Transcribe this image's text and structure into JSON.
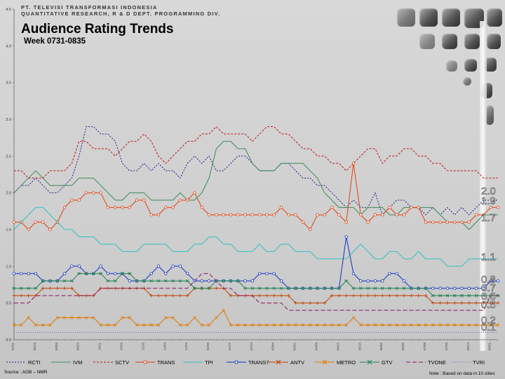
{
  "header": {
    "company_line1": "PT. TELEVISI TRANSFORMASI INDONESIA",
    "company_line2": "QUANTITATIVE RESEARCH, R & D DEPT. PROGRAMMING DIV.",
    "title": "Audience Rating Trends",
    "subtitle": "Week 0731-0835"
  },
  "footer": {
    "source": "Source : AGB – NMR",
    "note": "Note : Based on data in 10 cities"
  },
  "right_labels": [
    "2.0",
    "1.9",
    "1.7",
    "1.1",
    "0.8",
    "0.7",
    "0.6",
    "0.5",
    "0.2",
    "0.1"
  ],
  "chart_data": {
    "type": "line",
    "title": "Audience Rating Trends",
    "subtitle": "Week 0731-0835",
    "ylim": [
      0,
      4.5
    ],
    "yticks": [
      "0.0",
      "0.5",
      "1.0",
      "1.5",
      "2.0",
      "2.5",
      "3.0",
      "3.5",
      "4.0",
      "4.5"
    ],
    "x": [
      "07/31",
      "08/06",
      "08/12",
      "08/18",
      "08/24",
      "08/30",
      "09/05",
      "09/11",
      "09/17",
      "09/23",
      "09/29",
      "10/05",
      "10/11",
      "10/17",
      "10/23",
      "10/29",
      "11/04",
      "11/10",
      "11/16",
      "11/22",
      "11/28",
      "12/04",
      "12/10",
      "12/16",
      "12/22",
      "12/28",
      "01/03",
      "01/09",
      "01/15",
      "01/21",
      "01/27",
      "02/02",
      "02/08",
      "02/14",
      "02/20",
      "02/26",
      "03/04",
      "03/10",
      "03/16",
      "03/22",
      "03/28",
      "04/03",
      "04/09",
      "04/15",
      "04/21",
      "04/27",
      "05/03",
      "05/09",
      "05/15",
      "05/21",
      "05/27",
      "06/02",
      "06/08",
      "06/14",
      "06/20",
      "06/26",
      "07/02",
      "07/08",
      "07/14",
      "07/20",
      "07/26",
      "08/01",
      "08/07",
      "08/13",
      "08/19",
      "08/25",
      "08/31",
      "09/06"
    ],
    "grid": false,
    "legend_position": "bottom",
    "series": [
      {
        "name": "RCTI",
        "color": "#1a1a8c",
        "dash": "2,2",
        "marker": "none",
        "values": [
          2.0,
          2.1,
          2.1,
          2.2,
          2.1,
          2.0,
          2.0,
          2.1,
          2.2,
          2.5,
          2.9,
          2.9,
          2.8,
          2.8,
          2.7,
          2.4,
          2.3,
          2.3,
          2.4,
          2.3,
          2.4,
          2.3,
          2.3,
          2.2,
          2.4,
          2.5,
          2.4,
          2.5,
          2.3,
          2.3,
          2.4,
          2.5,
          2.5,
          2.4,
          2.3,
          2.3,
          2.3,
          2.4,
          2.4,
          2.3,
          2.2,
          2.2,
          2.1,
          2.1,
          2.0,
          1.9,
          1.8,
          1.9,
          1.8,
          1.8,
          2.0,
          1.7,
          1.8,
          1.9,
          1.9,
          1.8,
          1.8,
          1.7,
          1.8,
          1.7,
          1.8,
          1.7,
          1.8,
          1.7,
          1.8,
          1.9,
          1.9,
          1.9
        ]
      },
      {
        "name": "IVM",
        "color": "#3a8a5a",
        "dash": "",
        "marker": "none",
        "values": [
          2.0,
          2.1,
          2.2,
          2.3,
          2.2,
          2.1,
          2.1,
          2.1,
          2.1,
          2.2,
          2.2,
          2.2,
          2.1,
          2.0,
          1.9,
          1.9,
          2.0,
          2.0,
          2.0,
          1.9,
          1.9,
          1.9,
          1.9,
          2.0,
          1.9,
          1.9,
          2.0,
          2.2,
          2.6,
          2.7,
          2.7,
          2.6,
          2.6,
          2.4,
          2.3,
          2.3,
          2.3,
          2.4,
          2.4,
          2.4,
          2.4,
          2.3,
          2.2,
          2.0,
          1.9,
          1.8,
          1.8,
          1.8,
          1.7,
          1.8,
          1.8,
          1.8,
          1.7,
          1.7,
          1.8,
          1.8,
          1.8,
          1.8,
          1.8,
          1.7,
          1.6,
          1.6,
          1.6,
          1.5,
          1.6,
          1.7,
          1.7,
          1.7
        ]
      },
      {
        "name": "SCTV",
        "color": "#c01818",
        "dash": "3,2",
        "marker": "none",
        "values": [
          2.3,
          2.3,
          2.2,
          2.2,
          2.2,
          2.3,
          2.3,
          2.3,
          2.4,
          2.7,
          2.7,
          2.6,
          2.6,
          2.6,
          2.5,
          2.6,
          2.7,
          2.7,
          2.8,
          2.7,
          2.5,
          2.4,
          2.5,
          2.6,
          2.7,
          2.7,
          2.8,
          2.8,
          2.9,
          2.8,
          2.8,
          2.8,
          2.8,
          2.7,
          2.8,
          2.9,
          2.9,
          2.8,
          2.8,
          2.7,
          2.6,
          2.6,
          2.5,
          2.5,
          2.4,
          2.4,
          2.3,
          2.4,
          2.5,
          2.6,
          2.6,
          2.4,
          2.5,
          2.5,
          2.6,
          2.6,
          2.5,
          2.5,
          2.4,
          2.4,
          2.3,
          2.3,
          2.3,
          2.3,
          2.3,
          2.2,
          2.2,
          2.2
        ]
      },
      {
        "name": "TRANS",
        "color": "#e04010",
        "dash": "",
        "marker": "circle",
        "values": [
          1.6,
          1.6,
          1.5,
          1.6,
          1.6,
          1.5,
          1.6,
          1.8,
          1.9,
          1.9,
          2.0,
          2.0,
          2.0,
          1.8,
          1.8,
          1.8,
          1.8,
          1.9,
          1.9,
          1.7,
          1.7,
          1.8,
          1.8,
          1.9,
          1.9,
          2.0,
          1.8,
          1.7,
          1.7,
          1.7,
          1.7,
          1.7,
          1.7,
          1.7,
          1.7,
          1.7,
          1.7,
          1.8,
          1.7,
          1.7,
          1.6,
          1.5,
          1.7,
          1.7,
          1.8,
          1.7,
          1.6,
          2.4,
          1.7,
          1.6,
          1.7,
          1.7,
          1.8,
          1.7,
          1.7,
          1.8,
          1.8,
          1.6,
          1.6,
          1.6,
          1.6,
          1.6,
          1.6,
          1.6,
          1.7,
          1.7,
          1.8,
          1.8
        ]
      },
      {
        "name": "TPI",
        "color": "#30c0c0",
        "dash": "",
        "marker": "none",
        "values": [
          1.5,
          1.6,
          1.7,
          1.8,
          1.8,
          1.7,
          1.6,
          1.5,
          1.5,
          1.4,
          1.4,
          1.4,
          1.3,
          1.3,
          1.3,
          1.2,
          1.2,
          1.2,
          1.3,
          1.3,
          1.3,
          1.3,
          1.2,
          1.2,
          1.2,
          1.3,
          1.3,
          1.4,
          1.4,
          1.3,
          1.3,
          1.2,
          1.2,
          1.2,
          1.3,
          1.2,
          1.2,
          1.3,
          1.3,
          1.2,
          1.2,
          1.2,
          1.1,
          1.1,
          1.1,
          1.1,
          1.1,
          1.2,
          1.3,
          1.2,
          1.1,
          1.1,
          1.2,
          1.2,
          1.1,
          1.1,
          1.2,
          1.1,
          1.1,
          1.1,
          1.0,
          1.0,
          1.0,
          1.1,
          1.1,
          1.1,
          1.1,
          1.1
        ]
      },
      {
        "name": "TRANS7",
        "color": "#1030c0",
        "dash": "",
        "marker": "circle",
        "values": [
          0.9,
          0.9,
          0.9,
          0.9,
          0.8,
          0.8,
          0.8,
          0.9,
          1.0,
          1.0,
          0.9,
          0.9,
          1.0,
          0.9,
          0.9,
          0.9,
          0.8,
          0.8,
          0.8,
          0.9,
          1.0,
          0.9,
          1.0,
          1.0,
          0.9,
          0.8,
          0.8,
          0.8,
          0.8,
          0.8,
          0.8,
          0.8,
          0.8,
          0.8,
          0.9,
          0.9,
          0.9,
          0.8,
          0.7,
          0.7,
          0.7,
          0.7,
          0.7,
          0.7,
          0.7,
          0.7,
          1.4,
          0.9,
          0.8,
          0.8,
          0.8,
          0.8,
          0.9,
          0.9,
          0.8,
          0.7,
          0.7,
          0.7,
          0.7,
          0.7,
          0.7,
          0.7,
          0.7,
          0.7,
          0.7,
          0.7,
          0.8,
          0.8
        ]
      },
      {
        "name": "ANTV",
        "color": "#c04000",
        "dash": "",
        "marker": "plus",
        "values": [
          0.6,
          0.6,
          0.6,
          0.6,
          0.7,
          0.7,
          0.7,
          0.7,
          0.7,
          0.6,
          0.6,
          0.6,
          0.7,
          0.7,
          0.7,
          0.7,
          0.7,
          0.7,
          0.7,
          0.6,
          0.6,
          0.6,
          0.6,
          0.6,
          0.6,
          0.7,
          0.7,
          0.7,
          0.7,
          0.7,
          0.6,
          0.6,
          0.6,
          0.6,
          0.6,
          0.6,
          0.6,
          0.6,
          0.6,
          0.5,
          0.5,
          0.5,
          0.5,
          0.5,
          0.6,
          0.6,
          0.6,
          0.6,
          0.6,
          0.6,
          0.6,
          0.6,
          0.6,
          0.6,
          0.6,
          0.6,
          0.6,
          0.6,
          0.5,
          0.5,
          0.5,
          0.5,
          0.5,
          0.5,
          0.5,
          0.5,
          0.5,
          0.5
        ]
      },
      {
        "name": "METRO",
        "color": "#e07800",
        "dash": "",
        "marker": "x",
        "values": [
          0.2,
          0.2,
          0.3,
          0.2,
          0.2,
          0.2,
          0.3,
          0.3,
          0.3,
          0.3,
          0.3,
          0.3,
          0.2,
          0.2,
          0.2,
          0.3,
          0.3,
          0.2,
          0.2,
          0.2,
          0.2,
          0.3,
          0.3,
          0.2,
          0.2,
          0.3,
          0.2,
          0.2,
          0.3,
          0.4,
          0.2,
          0.2,
          0.2,
          0.2,
          0.2,
          0.2,
          0.2,
          0.2,
          0.2,
          0.2,
          0.2,
          0.2,
          0.2,
          0.2,
          0.2,
          0.2,
          0.2,
          0.3,
          0.2,
          0.2,
          0.2,
          0.2,
          0.2,
          0.2,
          0.2,
          0.2,
          0.2,
          0.2,
          0.2,
          0.2,
          0.2,
          0.2,
          0.2,
          0.2,
          0.2,
          0.2,
          0.2,
          0.2
        ]
      },
      {
        "name": "GTV",
        "color": "#208050",
        "dash": "",
        "marker": "star",
        "values": [
          0.7,
          0.7,
          0.7,
          0.7,
          0.8,
          0.8,
          0.8,
          0.8,
          0.8,
          0.9,
          0.9,
          0.9,
          0.9,
          0.8,
          0.8,
          0.9,
          0.9,
          0.8,
          0.8,
          0.8,
          0.8,
          0.8,
          0.8,
          0.8,
          0.8,
          0.7,
          0.7,
          0.7,
          0.8,
          0.8,
          0.8,
          0.8,
          0.7,
          0.7,
          0.7,
          0.7,
          0.7,
          0.7,
          0.7,
          0.7,
          0.7,
          0.7,
          0.7,
          0.7,
          0.7,
          0.7,
          0.8,
          0.7,
          0.7,
          0.7,
          0.7,
          0.7,
          0.7,
          0.7,
          0.7,
          0.7,
          0.7,
          0.7,
          0.6,
          0.6,
          0.6,
          0.6,
          0.6,
          0.6,
          0.6,
          0.6,
          0.6,
          0.6
        ]
      },
      {
        "name": "TVONE",
        "color": "#8a1060",
        "dash": "6,3",
        "marker": "none",
        "values": [
          0.5,
          0.5,
          0.5,
          0.6,
          0.6,
          0.6,
          0.6,
          0.6,
          0.6,
          0.6,
          0.6,
          0.6,
          0.7,
          0.7,
          0.7,
          0.7,
          0.7,
          0.7,
          0.7,
          0.7,
          0.7,
          0.7,
          0.7,
          0.7,
          0.7,
          0.8,
          0.9,
          0.9,
          0.8,
          0.7,
          0.7,
          0.6,
          0.6,
          0.6,
          0.5,
          0.5,
          0.5,
          0.5,
          0.4,
          0.4,
          0.4,
          0.4,
          0.4,
          0.4,
          0.4,
          0.4,
          0.4,
          0.4,
          0.4,
          0.4,
          0.4,
          0.4,
          0.4,
          0.4,
          0.4,
          0.4,
          0.4,
          0.4,
          0.4,
          0.4,
          0.4,
          0.4,
          0.4,
          0.4,
          0.4,
          0.4,
          0.6,
          0.6
        ]
      },
      {
        "name": "TVRI",
        "color": "#6060c0",
        "dash": "1,2",
        "marker": "none",
        "values": [
          0.1,
          0.1,
          0.1,
          0.1,
          0.1,
          0.1,
          0.1,
          0.1,
          0.1,
          0.1,
          0.1,
          0.1,
          0.1,
          0.1,
          0.1,
          0.1,
          0.1,
          0.1,
          0.1,
          0.1,
          0.1,
          0.1,
          0.1,
          0.1,
          0.1,
          0.1,
          0.1,
          0.1,
          0.1,
          0.1,
          0.1,
          0.1,
          0.1,
          0.1,
          0.1,
          0.1,
          0.1,
          0.1,
          0.1,
          0.1,
          0.1,
          0.1,
          0.1,
          0.1,
          0.1,
          0.1,
          0.1,
          0.1,
          0.1,
          0.1,
          0.1,
          0.1,
          0.1,
          0.1,
          0.1,
          0.1,
          0.1,
          0.1,
          0.1,
          0.1,
          0.1,
          0.1,
          0.1,
          0.1,
          0.1,
          0.1,
          0.1,
          0.1
        ]
      }
    ]
  }
}
